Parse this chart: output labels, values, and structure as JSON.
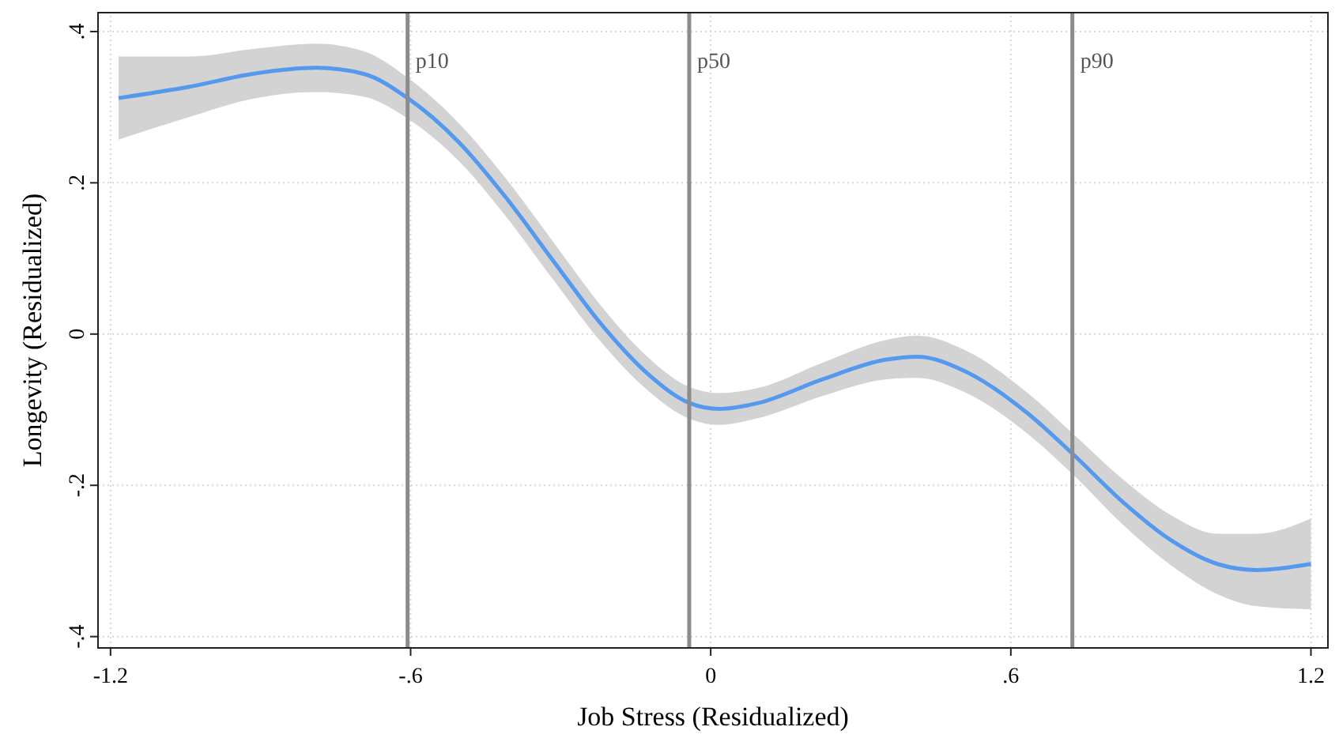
{
  "chart_data": {
    "type": "line",
    "xlabel": "Job Stress (Residualized)",
    "ylabel": "Longevity (Residualized)",
    "xlim": [
      -1.225,
      1.234
    ],
    "ylim": [
      -0.415,
      0.425
    ],
    "xticks": [
      {
        "value": -1.2,
        "label": "-1.2"
      },
      {
        "value": -0.6,
        "label": "-.6"
      },
      0,
      {
        "value": 0.6,
        "label": ".6"
      },
      {
        "value": 1.2,
        "label": "1.2"
      }
    ],
    "yticks": [
      {
        "value": -0.4,
        "label": "-.4"
      },
      {
        "value": -0.2,
        "label": "-.2"
      },
      0,
      {
        "value": 0.2,
        "label": ".2"
      },
      {
        "value": 0.4,
        "label": ".4"
      }
    ],
    "grid": true,
    "marker": "none",
    "line_style": "solid",
    "ref_lines": [
      {
        "axis": "x",
        "value": -0.606,
        "label": "p10",
        "color": "#8c8c8c"
      },
      {
        "axis": "x",
        "value": -0.043,
        "label": "p50",
        "color": "#8c8c8c"
      },
      {
        "axis": "x",
        "value": 0.723,
        "label": "p90",
        "color": "#8c8c8c"
      }
    ],
    "series": [
      {
        "color": "#5599ee",
        "x": [
          -1.184,
          -1.042,
          -0.916,
          -0.789,
          -0.694,
          -0.606,
          -0.504,
          -0.41,
          -0.315,
          -0.22,
          -0.125,
          -0.043,
          0.017,
          0.096,
          0.223,
          0.349,
          0.413,
          0.508,
          0.634,
          0.723,
          0.824,
          0.919,
          1.013,
          1.092,
          1.2
        ],
        "values": [
          0.312,
          0.327,
          0.344,
          0.352,
          0.344,
          0.312,
          0.254,
          0.181,
          0.097,
          0.014,
          -0.053,
          -0.091,
          -0.099,
          -0.091,
          -0.06,
          -0.034,
          -0.03,
          -0.049,
          -0.105,
          -0.158,
          -0.222,
          -0.272,
          -0.304,
          -0.312,
          -0.304
        ],
        "lower": [
          0.257,
          0.287,
          0.311,
          0.32,
          0.314,
          0.285,
          0.229,
          0.156,
          0.072,
          -0.01,
          -0.075,
          -0.112,
          -0.12,
          -0.111,
          -0.082,
          -0.06,
          -0.058,
          -0.077,
          -0.132,
          -0.185,
          -0.252,
          -0.305,
          -0.344,
          -0.36,
          -0.364
        ],
        "upper": [
          0.367,
          0.367,
          0.377,
          0.384,
          0.374,
          0.339,
          0.279,
          0.206,
          0.122,
          0.038,
          -0.031,
          -0.07,
          -0.078,
          -0.071,
          -0.038,
          -0.008,
          -0.002,
          -0.021,
          -0.078,
          -0.131,
          -0.192,
          -0.239,
          -0.264,
          -0.264,
          -0.244
        ]
      }
    ]
  }
}
